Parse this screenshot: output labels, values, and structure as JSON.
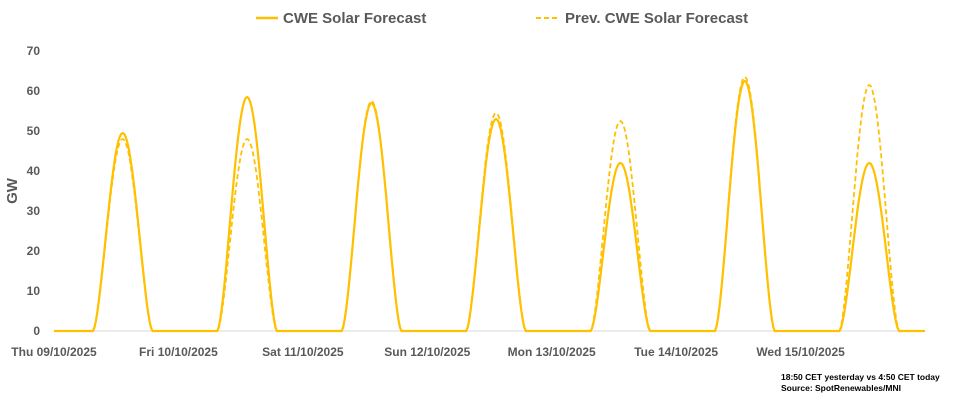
{
  "chart_data": {
    "type": "line",
    "title": "",
    "xlabel": "",
    "ylabel": "GW",
    "ylim": [
      0,
      70
    ],
    "yticks": [
      0,
      10,
      20,
      30,
      40,
      50,
      60,
      70
    ],
    "grid": false,
    "legend_position": "top",
    "x_tick_labels": [
      "Thu 09/10/2025",
      "Fri 10/10/2025",
      "Sat 11/10/2025",
      "Sun 12/10/2025",
      "Mon 13/10/2025",
      "Tue 14/10/2025",
      "Wed 15/10/2025"
    ],
    "x_range_days": [
      0,
      7
    ],
    "daylight_hours": [
      7.5,
      19.0
    ],
    "series": [
      {
        "name": "CWE Solar Forecast",
        "style": "solid",
        "color": "#FFC000",
        "daily_peak_gw": [
          49.5,
          58.5,
          57.0,
          53.0,
          42.0,
          62.5,
          42.0
        ]
      },
      {
        "name": "Prev. CWE Solar Forecast",
        "style": "dashed",
        "color": "#FFC000",
        "daily_peak_gw": [
          48.0,
          48.0,
          57.5,
          54.5,
          52.5,
          63.5,
          61.5
        ]
      }
    ]
  },
  "footnote": {
    "line1": "18:50 CET yesterday vs  4:50 CET today",
    "line2": "Source: SpotRenewables/MNI"
  }
}
